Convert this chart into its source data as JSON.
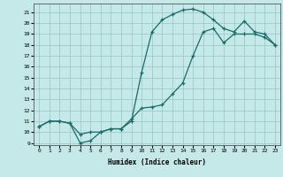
{
  "xlabel": "Humidex (Indice chaleur)",
  "bg_color": "#c5e8e8",
  "grid_color": "#9fcaca",
  "line_color": "#1a6b6b",
  "marker": "+",
  "xlim": [
    -0.5,
    23.5
  ],
  "ylim": [
    8.8,
    21.8
  ],
  "xticks": [
    0,
    1,
    2,
    3,
    4,
    5,
    6,
    7,
    8,
    9,
    10,
    11,
    12,
    13,
    14,
    15,
    16,
    17,
    18,
    19,
    20,
    21,
    22,
    23
  ],
  "yticks": [
    9,
    10,
    11,
    12,
    13,
    14,
    15,
    16,
    17,
    18,
    19,
    20,
    21
  ],
  "line1_x": [
    0,
    1,
    2,
    3,
    4,
    5,
    6,
    7,
    8,
    9,
    10,
    11,
    12,
    13,
    14,
    15,
    16,
    17,
    18,
    19,
    20,
    21,
    22,
    23
  ],
  "line1_y": [
    10.5,
    11.0,
    11.0,
    10.8,
    9.8,
    10.0,
    10.0,
    10.3,
    10.3,
    11.2,
    12.2,
    12.3,
    12.5,
    13.5,
    14.5,
    17.0,
    19.2,
    19.5,
    18.2,
    19.0,
    19.0,
    19.0,
    18.7,
    18.0
  ],
  "line2_x": [
    0,
    1,
    2,
    3,
    4,
    5,
    6,
    7,
    8,
    9,
    10,
    11,
    12,
    13,
    14,
    15,
    16,
    17,
    18,
    19,
    20,
    21,
    22,
    23
  ],
  "line2_y": [
    10.5,
    11.0,
    11.0,
    10.8,
    9.0,
    9.2,
    10.0,
    10.3,
    10.3,
    11.0,
    15.5,
    19.2,
    20.3,
    20.8,
    21.2,
    21.3,
    21.0,
    20.3,
    19.5,
    19.2,
    20.2,
    19.2,
    19.0,
    18.0
  ]
}
